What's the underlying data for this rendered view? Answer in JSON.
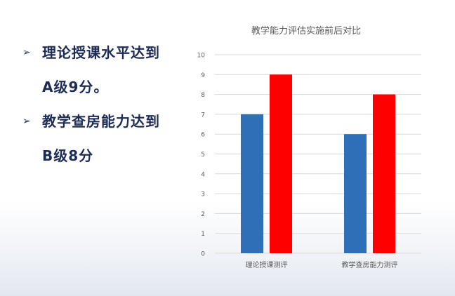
{
  "bullets": [
    {
      "arrow": "➢",
      "lines": [
        "理论授课水平达到",
        "A级9分。"
      ]
    },
    {
      "arrow": "➢",
      "lines": [
        "教学查房能力达到",
        "B级8分"
      ]
    }
  ],
  "chart_data": {
    "type": "bar",
    "title": "教学能力评估实施前后对比",
    "categories": [
      "理论授课测评",
      "教学查房能力测评"
    ],
    "series": [
      {
        "values": [
          7,
          6
        ],
        "color": "#2e6fb8"
      },
      {
        "values": [
          9,
          8
        ],
        "color": "#ff0000"
      }
    ],
    "ylim": [
      0,
      10
    ],
    "yticks": [
      "0",
      "1",
      "2",
      "3",
      "4",
      "5",
      "6",
      "7",
      "8",
      "9",
      "10"
    ],
    "grid": true,
    "grid_color": "#d9d9d9",
    "text_color": "#595959"
  }
}
